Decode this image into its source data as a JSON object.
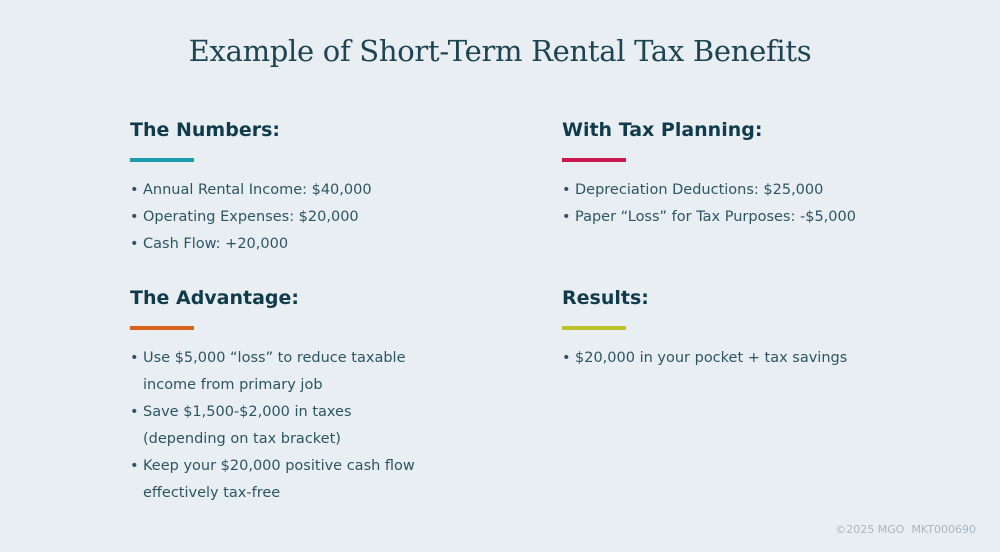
{
  "title": "Example of Short-Term Rental Tax Benefits",
  "sections": [
    {
      "heading": "The Numbers:",
      "accent": "#1a9bb0",
      "items": [
        "Annual Rental Income: $40,000",
        "Operating Expenses: $20,000",
        "Cash Flow: +20,000"
      ]
    },
    {
      "heading": "With Tax Planning:",
      "accent": "#c8174a",
      "items": [
        "Depreciation Deductions: $25,000",
        "Paper “Loss” for Tax Purposes: -$5,000"
      ]
    },
    {
      "heading": "The Advantage:",
      "accent": "#d9621c",
      "items": [
        "Use $5,000 “loss” to reduce taxable income from primary job",
        "Save $1,500-$2,000 in taxes (depending on tax bracket)",
        "Keep your $20,000 positive cash flow effectively tax-free"
      ]
    },
    {
      "heading": "Results:",
      "accent": "#bcc22a",
      "items": [
        "$20,000 in your pocket + tax savings"
      ]
    }
  ],
  "footer": "©2025 MGO  MKT000690"
}
